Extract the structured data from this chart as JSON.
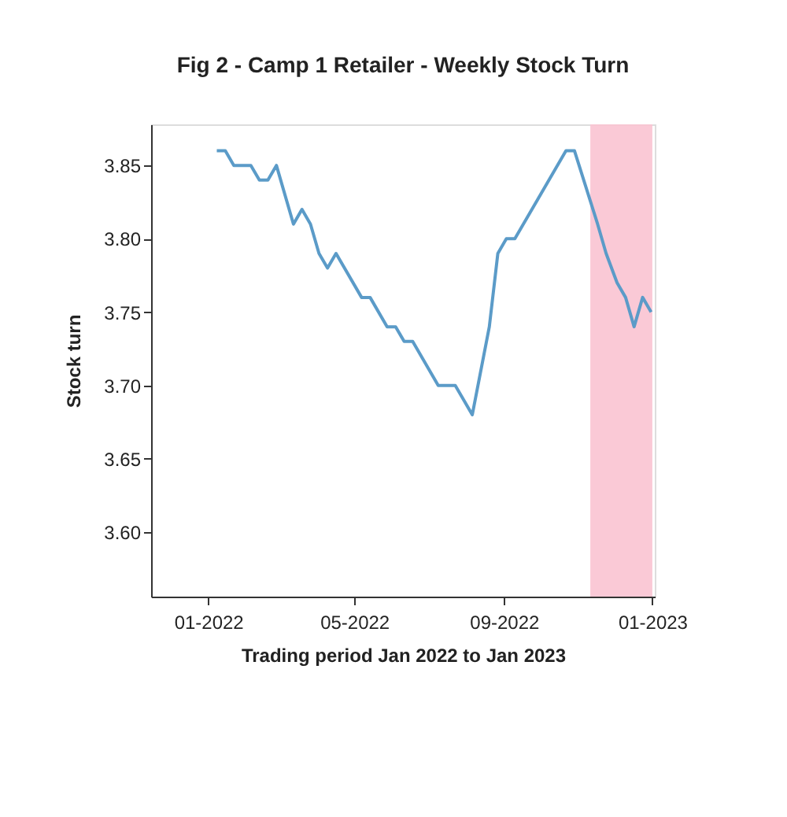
{
  "chart_data": {
    "type": "line",
    "title": "Fig 2 - Camp 1 Retailer - Weekly Stock Turn",
    "xlabel": "Trading period Jan 2022 to Jan 2023",
    "ylabel": "Stock turn",
    "x": [
      "2022-01-08",
      "2022-01-15",
      "2022-01-22",
      "2022-02-05",
      "2022-02-12",
      "2022-02-19",
      "2022-02-26",
      "2022-03-12",
      "2022-03-19",
      "2022-03-26",
      "2022-04-02",
      "2022-04-09",
      "2022-04-16",
      "2022-05-07",
      "2022-05-14",
      "2022-05-28",
      "2022-06-04",
      "2022-06-11",
      "2022-06-18",
      "2022-07-09",
      "2022-07-23",
      "2022-08-06",
      "2022-08-20",
      "2022-08-27",
      "2022-09-03",
      "2022-09-10",
      "2022-10-22",
      "2022-10-29",
      "2022-11-17",
      "2022-11-24",
      "2022-12-03",
      "2022-12-10",
      "2022-12-17",
      "2022-12-24",
      "2022-12-31"
    ],
    "series": [
      {
        "color": "#5b9bc8",
        "values": [
          3.86,
          3.86,
          3.85,
          3.85,
          3.84,
          3.84,
          3.85,
          3.81,
          3.82,
          3.81,
          3.79,
          3.78,
          3.79,
          3.76,
          3.76,
          3.74,
          3.74,
          3.73,
          3.73,
          3.7,
          3.7,
          3.68,
          3.74,
          3.79,
          3.8,
          3.8,
          3.86,
          3.86,
          3.81,
          3.79,
          3.77,
          3.76,
          3.74,
          3.76,
          3.75
        ]
      }
    ],
    "xlim": [
      "2021-11-15",
      "2023-01-03"
    ],
    "xticks": [
      {
        "value": "2022-01-01",
        "label": "01-2022"
      },
      {
        "value": "2022-05-01",
        "label": "05-2022"
      },
      {
        "value": "2022-09-01",
        "label": "09-2022"
      },
      {
        "value": "2023-01-01",
        "label": "01-2023"
      }
    ],
    "ylim": [
      3.556,
      3.878
    ],
    "yticks": [
      {
        "value": 3.6,
        "label": "3.60"
      },
      3.65,
      {
        "value": 3.7,
        "label": "3.70"
      },
      3.75,
      {
        "value": 3.8,
        "label": "3.80"
      },
      3.85
    ],
    "bands": [
      {
        "axis": "x",
        "from": "2022-11-11",
        "to": "2023-01-01",
        "color": "#f9c3d2"
      }
    ],
    "grid": false,
    "marker": "none",
    "line_style": "solid"
  }
}
